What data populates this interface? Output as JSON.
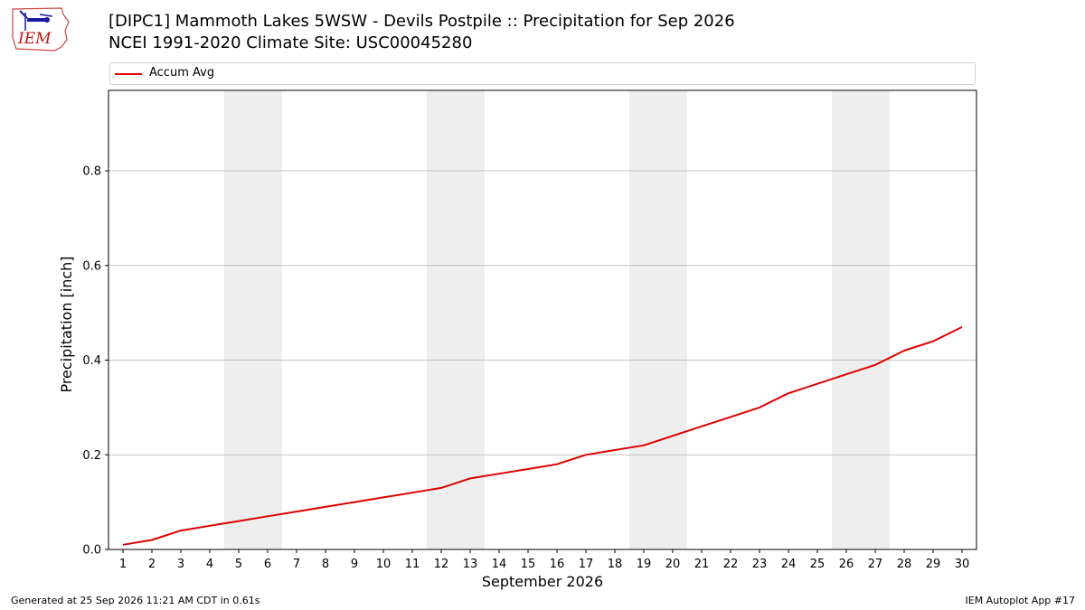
{
  "header": {
    "title_line1": "[DIPC1] Mammoth Lakes 5WSW - Devils Postpile :: Precipitation for Sep 2026",
    "title_line2": "NCEI 1991-2020 Climate Site: USC00045280"
  },
  "logo": {
    "text": "IEM",
    "icon": "iem-logo-icon"
  },
  "footer": {
    "generated": "Generated at 25 Sep 2026 11:21 AM CDT in 0.61s",
    "app": "IEM Autoplot App #17"
  },
  "chart_data": {
    "type": "line",
    "xlabel": "September 2026",
    "ylabel": "Precipitation [inch]",
    "x": [
      1,
      2,
      3,
      4,
      5,
      6,
      7,
      8,
      9,
      10,
      11,
      12,
      13,
      14,
      15,
      16,
      17,
      18,
      19,
      20,
      21,
      22,
      23,
      24,
      25,
      26,
      27,
      28,
      29,
      30
    ],
    "xlim": [
      0.5,
      30.5
    ],
    "ylim": [
      0,
      0.97
    ],
    "yticks": [
      0.0,
      0.2,
      0.4,
      0.6,
      0.8
    ],
    "ytick_labels": [
      "0.0",
      "0.2",
      "0.4",
      "0.6",
      "0.8"
    ],
    "grid": "horizontal",
    "legend": "top",
    "weekend_shading": [
      [
        4.5,
        6.5
      ],
      [
        11.5,
        13.5
      ],
      [
        18.5,
        20.5
      ],
      [
        25.5,
        27.5
      ]
    ],
    "series": [
      {
        "name": "Accum Avg",
        "color": "#e00000",
        "values": [
          0.01,
          0.02,
          0.04,
          0.05,
          0.06,
          0.07,
          0.08,
          0.09,
          0.1,
          0.11,
          0.12,
          0.13,
          0.15,
          0.16,
          0.17,
          0.18,
          0.2,
          0.21,
          0.22,
          0.24,
          0.26,
          0.28,
          0.3,
          0.33,
          0.35,
          0.37,
          0.39,
          0.42,
          0.44,
          0.47
        ]
      }
    ]
  }
}
